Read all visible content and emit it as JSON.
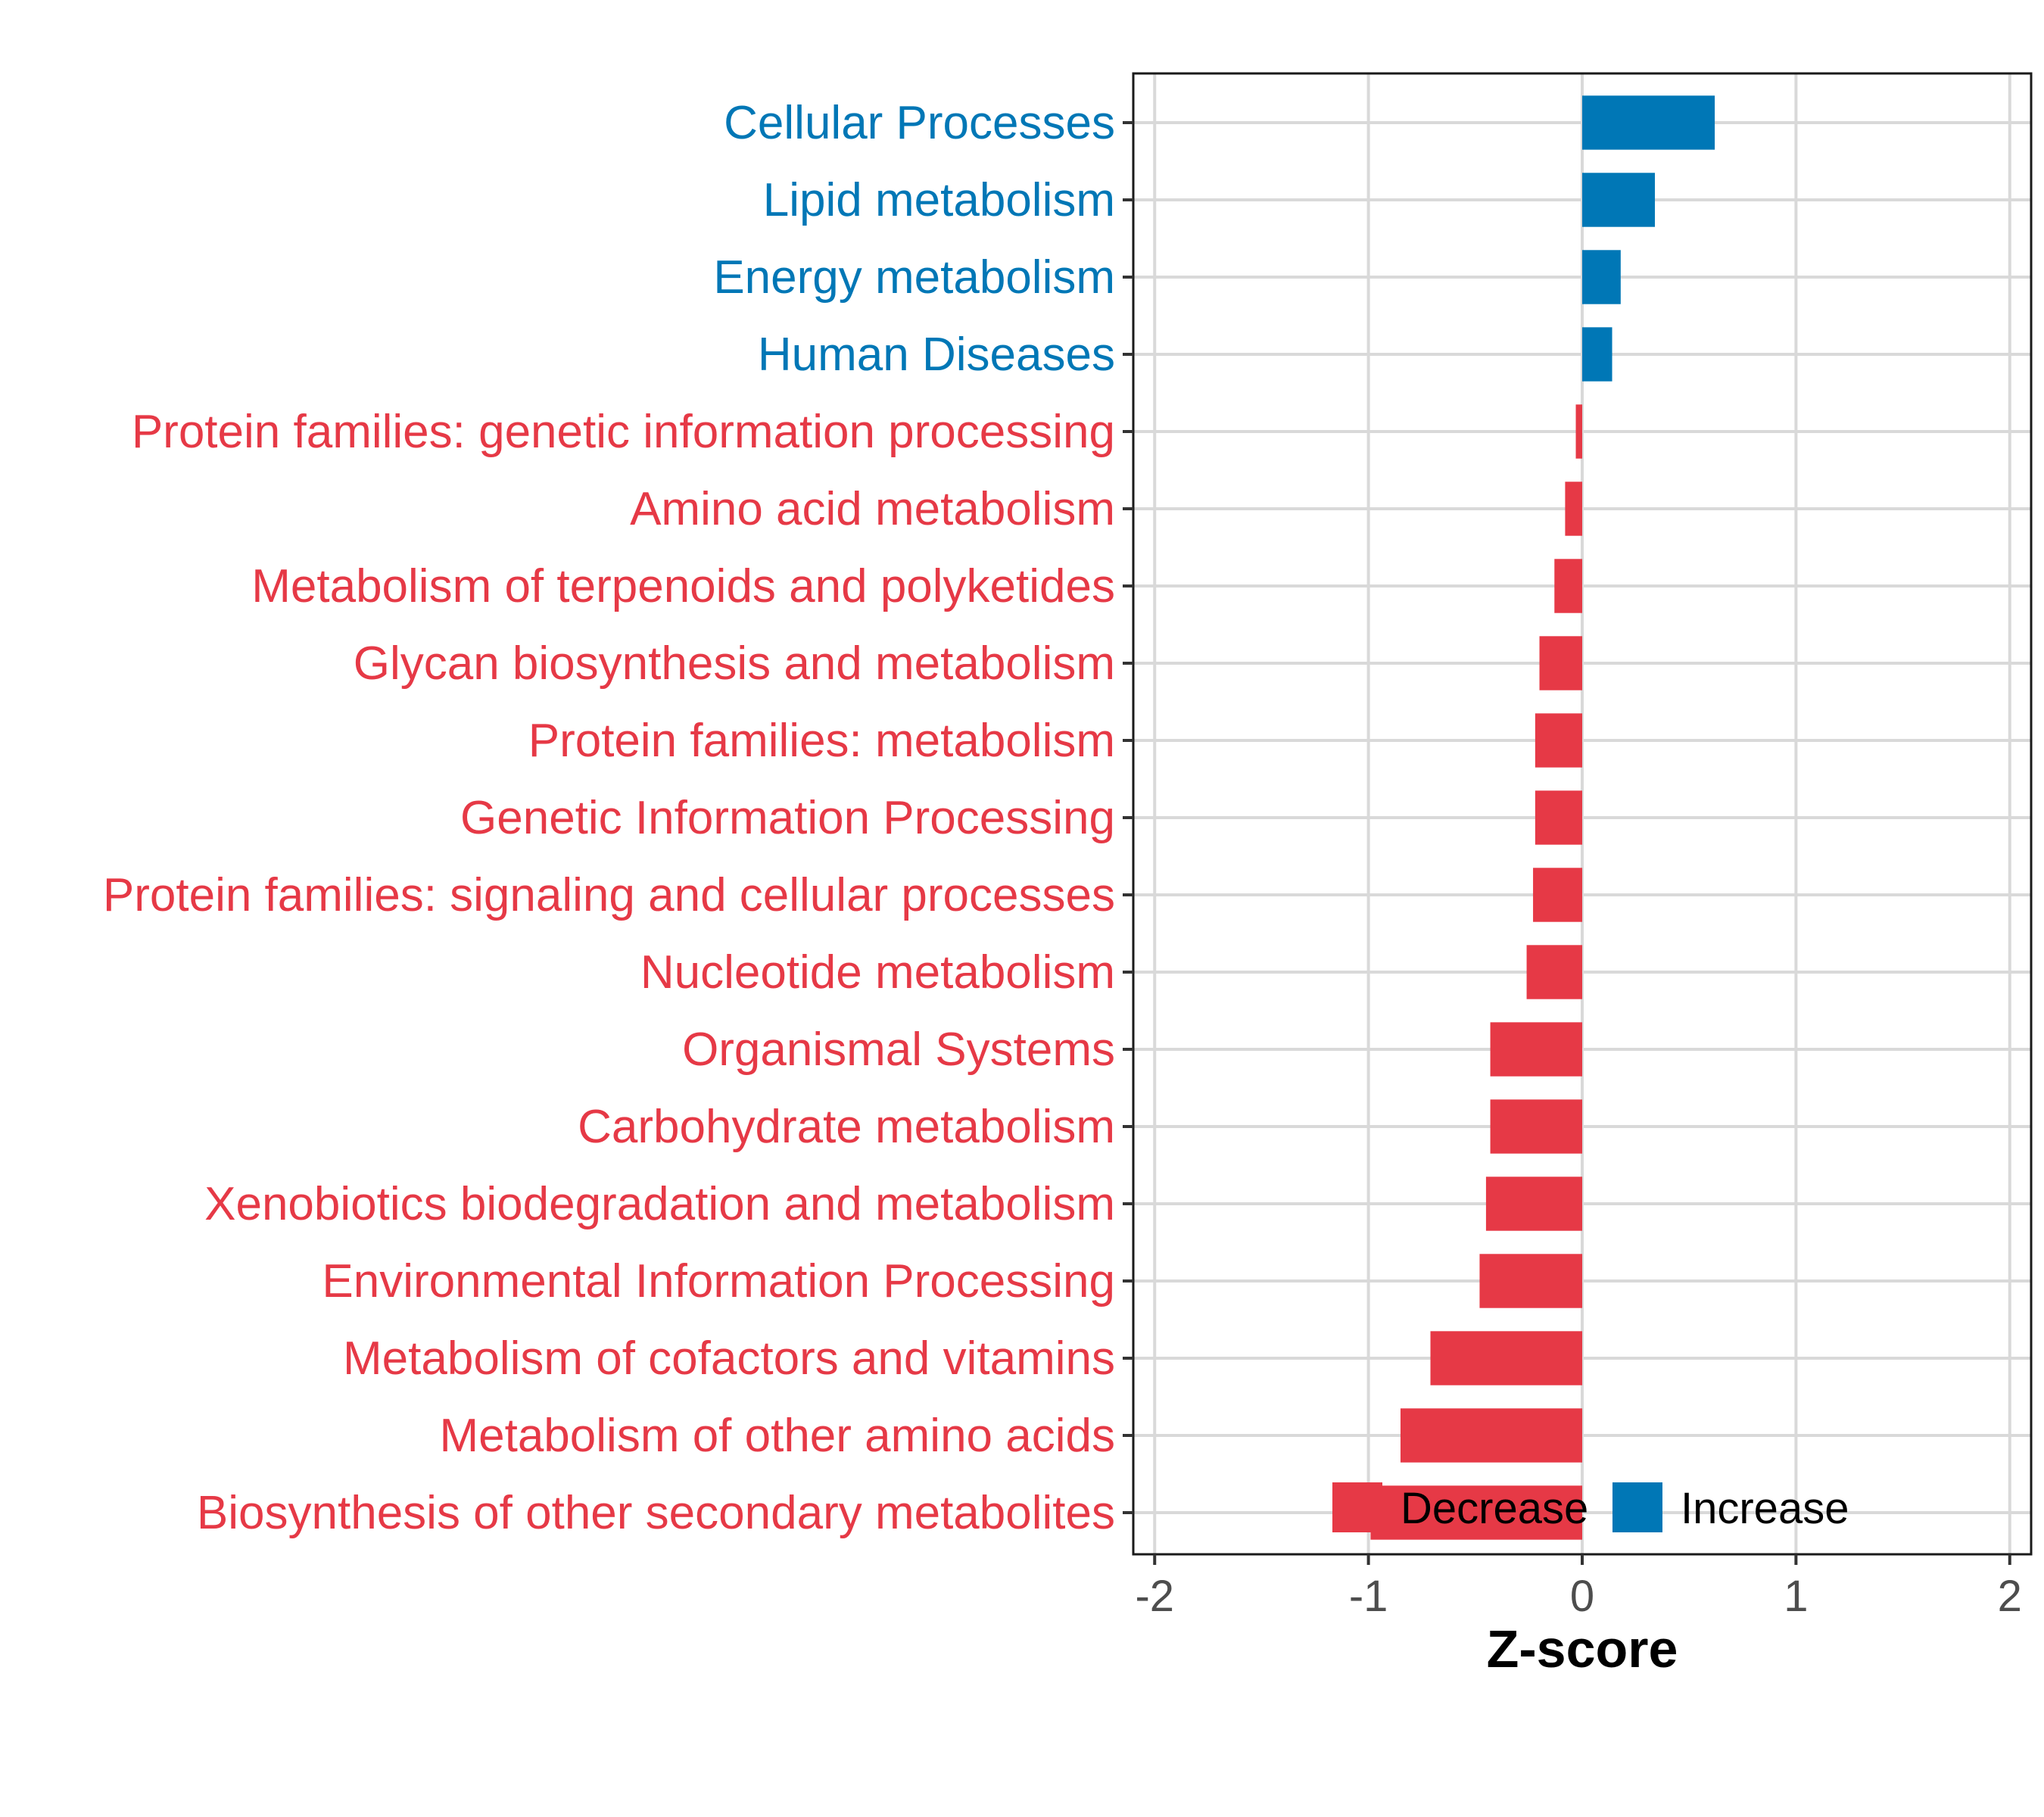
{
  "chart_data": {
    "type": "bar",
    "orientation": "horizontal",
    "xlabel": "Z-score",
    "xlim": [
      -2.1,
      2.1
    ],
    "xticks": [
      -2,
      -1,
      0,
      1,
      2
    ],
    "xtick_labels": [
      "-2",
      "-1",
      "0",
      "1",
      "2"
    ],
    "grid": true,
    "legend_position": "bottom",
    "legend": [
      {
        "label": "Decrease",
        "color": "#E63946"
      },
      {
        "label": "Increase",
        "color": "#0077B6"
      }
    ],
    "categories": [
      "Cellular Processes",
      "Lipid metabolism",
      "Energy metabolism",
      "Human Diseases",
      "Protein families: genetic information processing",
      "Amino acid metabolism",
      "Metabolism of terpenoids and polyketides",
      "Glycan biosynthesis and metabolism",
      "Protein families: metabolism",
      "Genetic Information Processing",
      "Protein families: signaling and cellular processes",
      "Nucleotide metabolism",
      "Organismal Systems",
      "Carbohydrate metabolism",
      "Xenobiotics biodegradation and metabolism",
      "Environmental Information Processing",
      "Metabolism of cofactors and vitamins",
      "Metabolism of other amino acids",
      "Biosynthesis of other secondary metabolites"
    ],
    "values": [
      0.62,
      0.34,
      0.18,
      0.14,
      -0.03,
      -0.08,
      -0.13,
      -0.2,
      -0.22,
      -0.22,
      -0.23,
      -0.26,
      -0.43,
      -0.43,
      -0.45,
      -0.48,
      -0.71,
      -0.85,
      -0.99
    ],
    "groups": [
      "Increase",
      "Increase",
      "Increase",
      "Increase",
      "Decrease",
      "Decrease",
      "Decrease",
      "Decrease",
      "Decrease",
      "Decrease",
      "Decrease",
      "Decrease",
      "Decrease",
      "Decrease",
      "Decrease",
      "Decrease",
      "Decrease",
      "Decrease",
      "Decrease"
    ]
  }
}
